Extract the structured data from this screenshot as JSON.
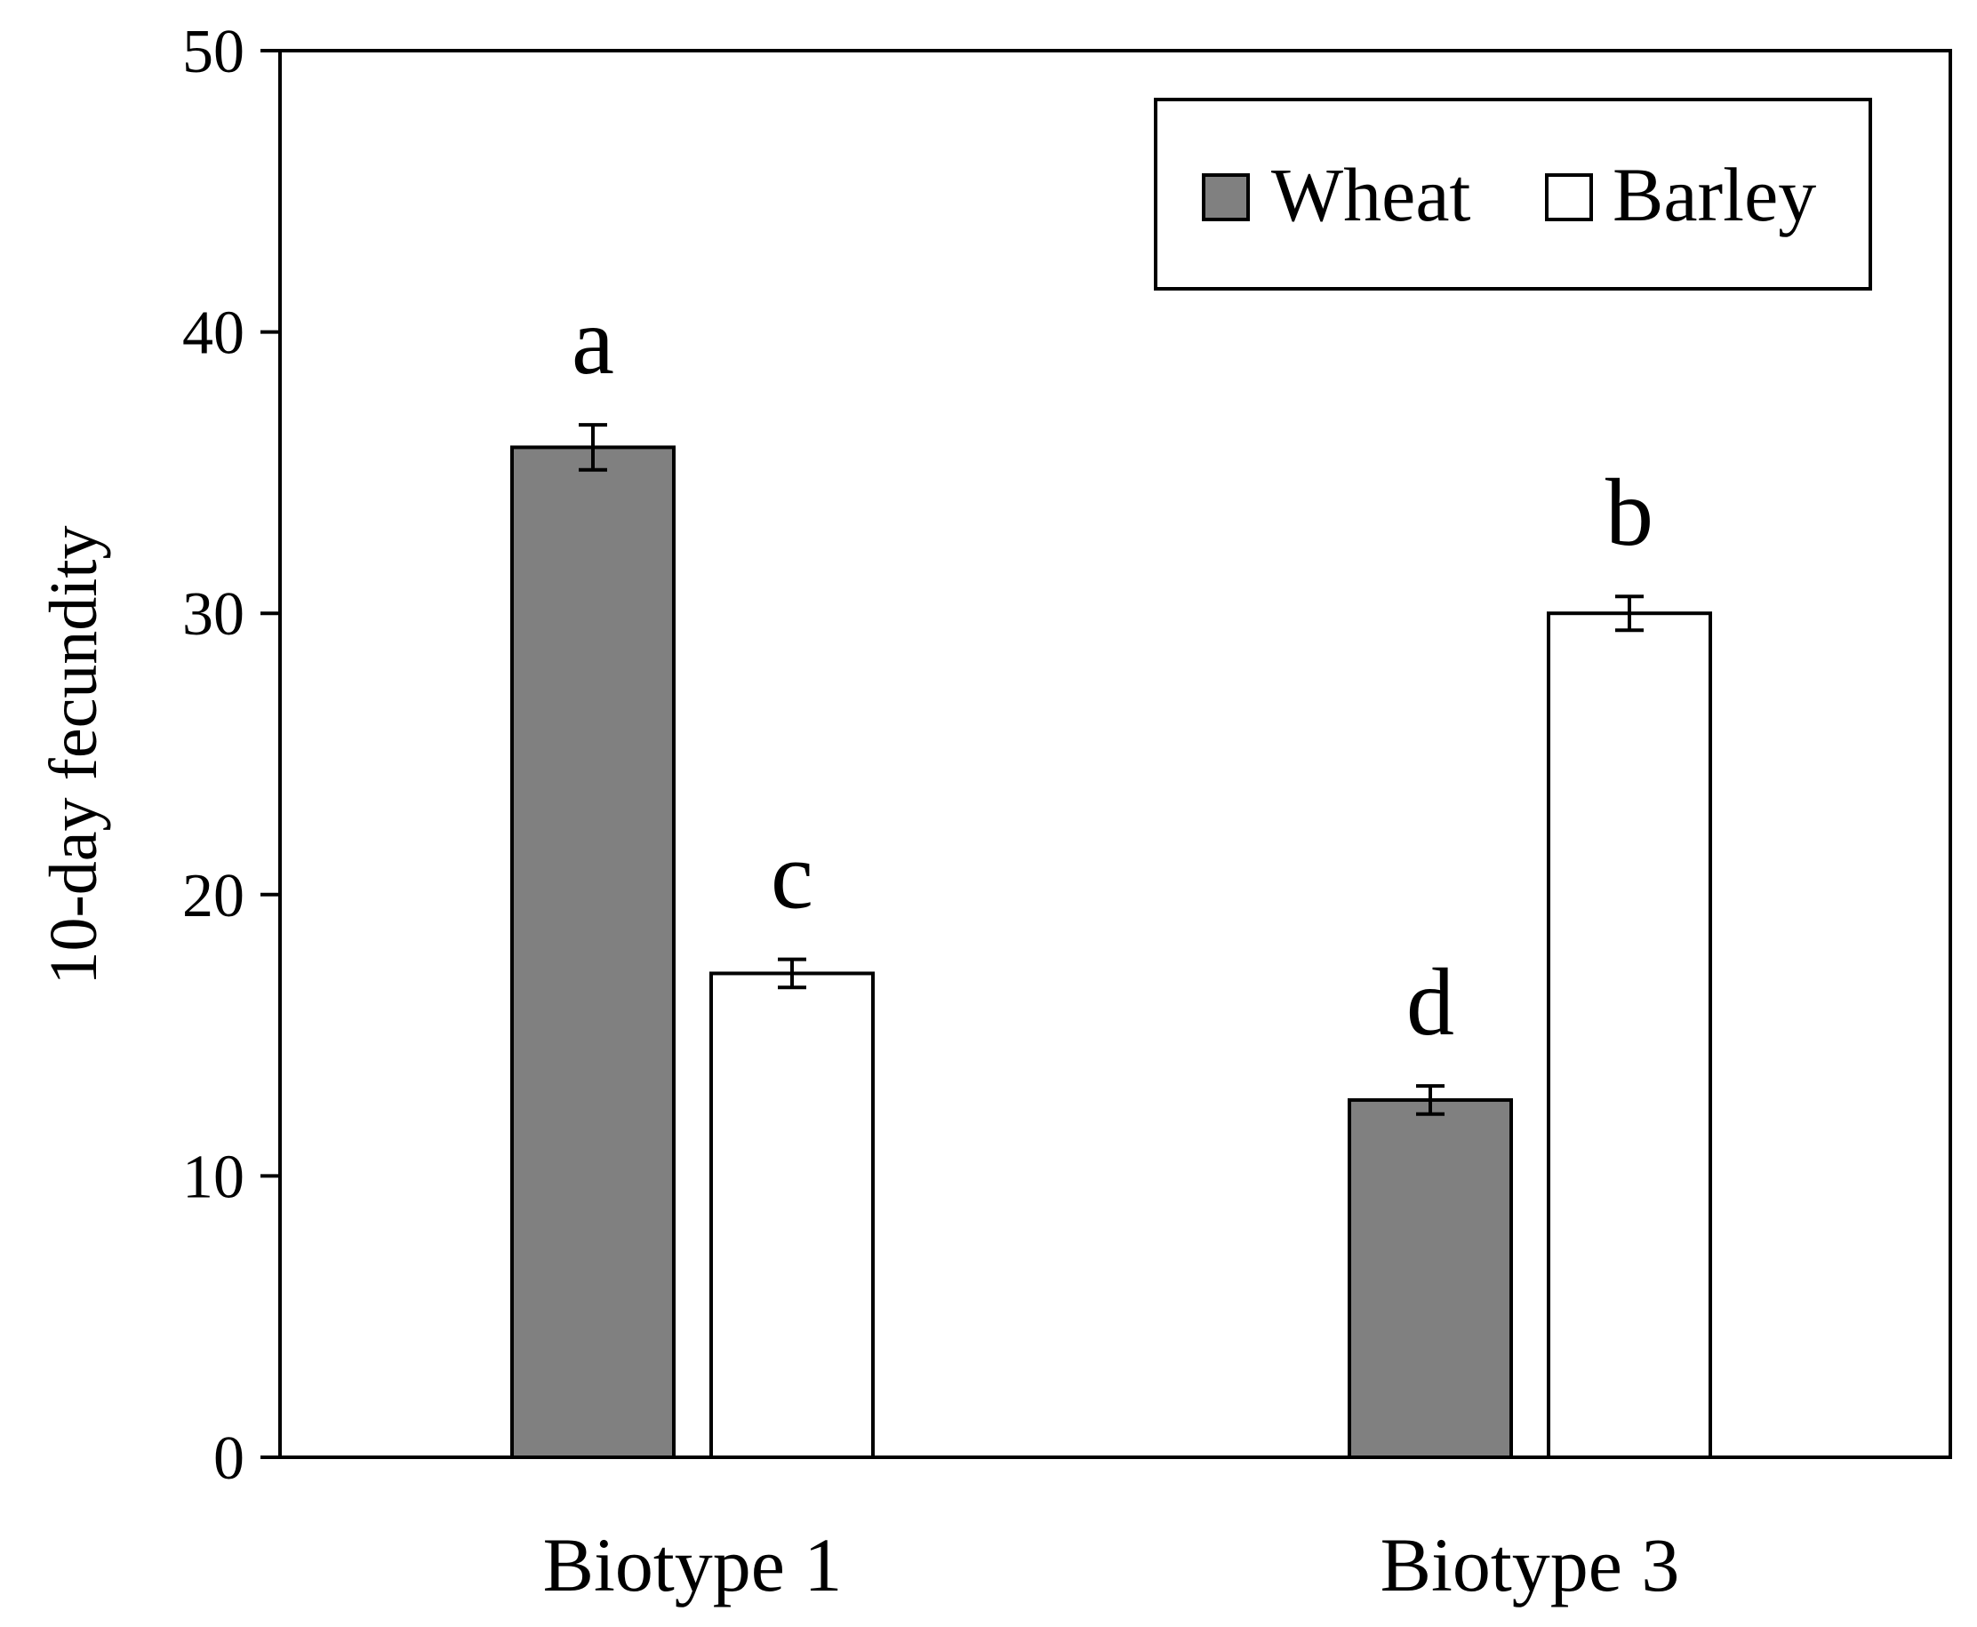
{
  "chart_data": {
    "type": "bar",
    "title": "",
    "xlabel": "",
    "ylabel": "10-day fecundity",
    "ylim": [
      0,
      50
    ],
    "yticks": [
      0,
      10,
      20,
      30,
      40,
      50
    ],
    "grid": false,
    "legend_position": "top-right",
    "categories": [
      "Biotype 1",
      "Biotype 3"
    ],
    "series": [
      {
        "name": "Wheat",
        "color": "#808080",
        "values": [
          35.9,
          12.7
        ],
        "errors": [
          0.8,
          0.5
        ],
        "letters": [
          "a",
          "d"
        ]
      },
      {
        "name": "Barley",
        "color": "#ffffff",
        "values": [
          17.2,
          30.0
        ],
        "errors": [
          0.5,
          0.6
        ],
        "letters": [
          "c",
          "b"
        ]
      }
    ]
  }
}
